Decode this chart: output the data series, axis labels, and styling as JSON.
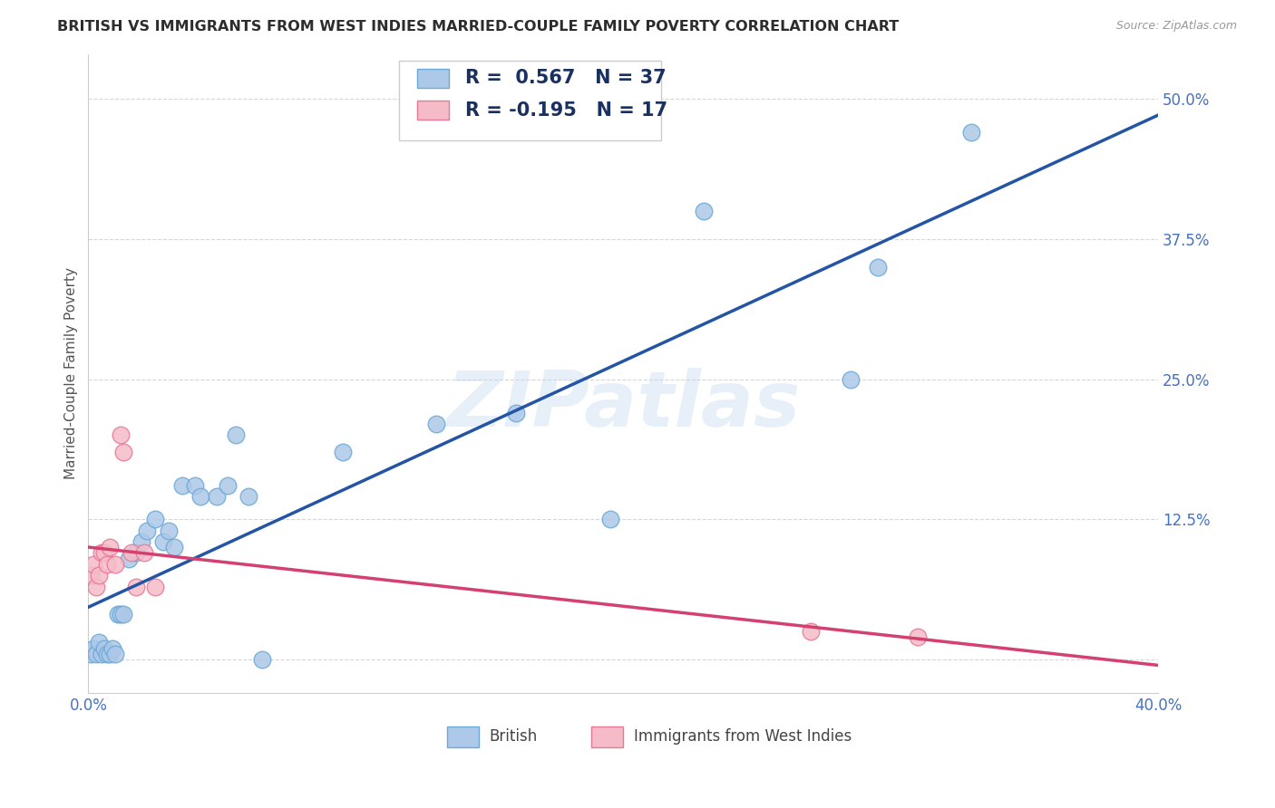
{
  "title": "BRITISH VS IMMIGRANTS FROM WEST INDIES MARRIED-COUPLE FAMILY POVERTY CORRELATION CHART",
  "source": "Source: ZipAtlas.com",
  "ylabel": "Married-Couple Family Poverty",
  "xlim": [
    0.0,
    0.4
  ],
  "ylim": [
    -0.03,
    0.54
  ],
  "yticks": [
    0.0,
    0.125,
    0.25,
    0.375,
    0.5
  ],
  "ytick_labels": [
    "",
    "12.5%",
    "25.0%",
    "37.5%",
    "50.0%"
  ],
  "xticks": [
    0.0,
    0.1,
    0.2,
    0.3,
    0.4
  ],
  "xtick_labels": [
    "0.0%",
    "",
    "",
    "",
    "40.0%"
  ],
  "watermark": "ZIPatlas",
  "british_color": "#adc8e8",
  "british_edge_color": "#6baad8",
  "west_indies_color": "#f5bcc8",
  "west_indies_edge_color": "#e87898",
  "trendline_british_color": "#2455a4",
  "trendline_west_indies_color": "#d44070",
  "R_british": 0.567,
  "N_british": 37,
  "R_west_indies": -0.195,
  "N_west_indies": 17,
  "british_x": [
    0.001,
    0.002,
    0.003,
    0.004,
    0.005,
    0.006,
    0.007,
    0.008,
    0.009,
    0.01,
    0.011,
    0.012,
    0.013,
    0.015,
    0.018,
    0.02,
    0.022,
    0.025,
    0.028,
    0.03,
    0.032,
    0.035,
    0.04,
    0.042,
    0.048,
    0.052,
    0.055,
    0.06,
    0.065,
    0.095,
    0.13,
    0.16,
    0.195,
    0.23,
    0.285,
    0.295,
    0.33
  ],
  "british_y": [
    0.005,
    0.01,
    0.005,
    0.015,
    0.005,
    0.01,
    0.005,
    0.005,
    0.01,
    0.005,
    0.04,
    0.04,
    0.04,
    0.09,
    0.095,
    0.105,
    0.115,
    0.125,
    0.105,
    0.115,
    0.1,
    0.155,
    0.155,
    0.145,
    0.145,
    0.155,
    0.2,
    0.145,
    0.0,
    0.185,
    0.21,
    0.22,
    0.125,
    0.4,
    0.25,
    0.35,
    0.47
  ],
  "west_indies_x": [
    0.001,
    0.002,
    0.003,
    0.004,
    0.005,
    0.006,
    0.007,
    0.008,
    0.01,
    0.012,
    0.013,
    0.016,
    0.018,
    0.021,
    0.025,
    0.27,
    0.31
  ],
  "west_indies_y": [
    0.075,
    0.085,
    0.065,
    0.075,
    0.095,
    0.095,
    0.085,
    0.1,
    0.085,
    0.2,
    0.185,
    0.095,
    0.065,
    0.095,
    0.065,
    0.025,
    0.02
  ],
  "background_color": "#ffffff",
  "grid_color": "#cccccc",
  "title_color": "#2d2d2d",
  "axis_label_color": "#555555",
  "tick_color": "#4472c4",
  "title_fontsize": 11.5,
  "ylabel_fontsize": 11,
  "tick_fontsize": 12,
  "legend_fontsize": 15
}
